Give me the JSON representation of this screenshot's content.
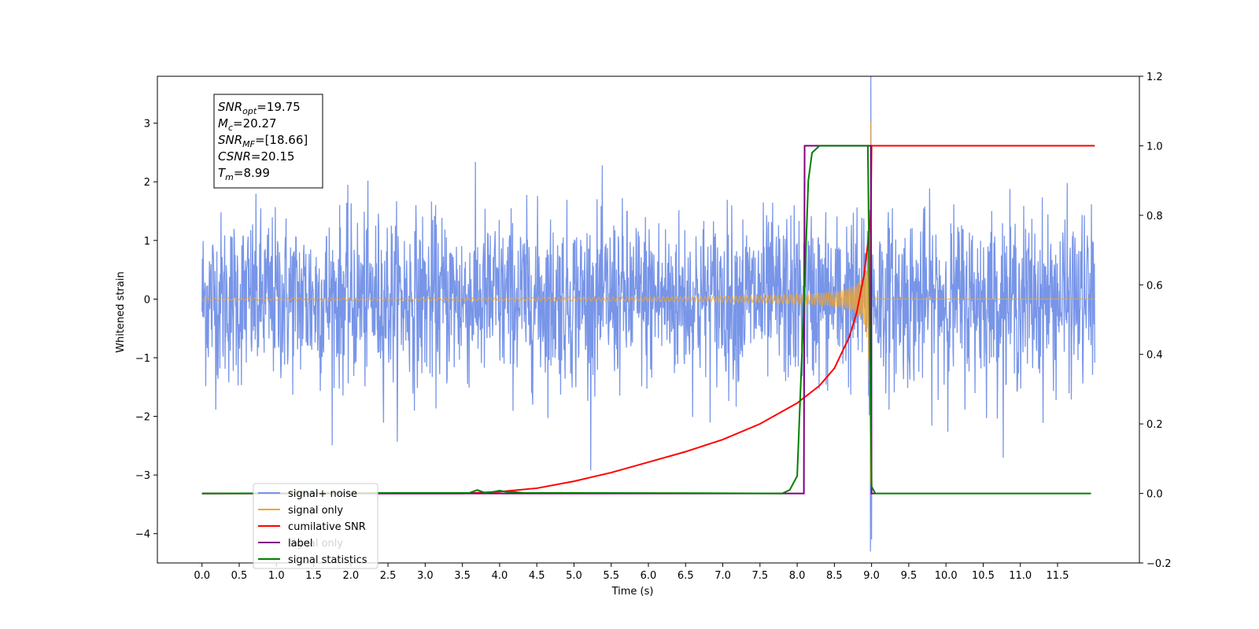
{
  "chart_data": {
    "type": "line",
    "xlabel": "Time (s)",
    "ylabel": "Whitened strain",
    "xlim": [
      -0.6,
      12.6
    ],
    "ylim_left": [
      -4.5,
      3.8
    ],
    "ylim_right": [
      -0.2,
      1.2
    ],
    "x_ticks": [
      0.0,
      0.5,
      1.0,
      1.5,
      2.0,
      2.5,
      3.0,
      3.5,
      4.0,
      4.5,
      5.0,
      5.5,
      6.0,
      6.5,
      7.0,
      7.5,
      8.0,
      8.5,
      9.0,
      9.5,
      10.0,
      10.5,
      11.0,
      11.5
    ],
    "x_tick_labels": [
      "0.0",
      "0.5",
      "1.0",
      "1.5",
      "2.0",
      "2.5",
      "3.0",
      "3.5",
      "4.0",
      "4.5",
      "5.0",
      "5.5",
      "6.0",
      "6.5",
      "7.0",
      "7.5",
      "8.0",
      "8.5",
      "9.0",
      "9.5",
      "10.0",
      "10.5",
      "11.0",
      "11.5"
    ],
    "y_left_ticks": [
      -4,
      -3,
      -2,
      -1,
      0,
      1,
      2,
      3
    ],
    "y_left_tick_labels": [
      "−4",
      "−3",
      "−2",
      "−1",
      "0",
      "1",
      "2",
      "3"
    ],
    "y_right_ticks": [
      -0.2,
      0.0,
      0.2,
      0.4,
      0.6,
      0.8,
      1.0,
      1.2
    ],
    "y_right_tick_labels": [
      "−0.2",
      "0.0",
      "0.2",
      "0.4",
      "0.6",
      "0.8",
      "1.0",
      "1.2"
    ],
    "grid": false,
    "legend_position": "bottom-left",
    "series": [
      {
        "name": "signal+ noise",
        "axis": "left",
        "color": "#7895e8",
        "description_values": {
          "x_start": 0.0,
          "x_end": 12.0,
          "typical_abs_max": 2.0,
          "peak_max": 3.45,
          "peak_min": -4.1,
          "peak_time": 9.0
        }
      },
      {
        "name": "signal only",
        "axis": "left",
        "color": "#f5a623",
        "chirp": {
          "t_start": 0.0,
          "t_merger": 8.99,
          "t_end": 12.0,
          "amp_start": 0.02,
          "amp_peak": 3.25
        }
      },
      {
        "name": "cumilative SNR",
        "axis": "right",
        "color": "#ff0000",
        "x": [
          0.0,
          3.5,
          4.0,
          4.5,
          5.0,
          5.5,
          6.0,
          6.5,
          7.0,
          7.5,
          8.0,
          8.3,
          8.5,
          8.7,
          8.8,
          8.9,
          8.95,
          8.99,
          9.0,
          12.0
        ],
        "y": [
          0.0,
          0.0,
          0.005,
          0.015,
          0.035,
          0.06,
          0.09,
          0.12,
          0.155,
          0.2,
          0.26,
          0.31,
          0.36,
          0.45,
          0.52,
          0.63,
          0.72,
          0.8,
          1.0,
          1.0
        ]
      },
      {
        "name": "label",
        "axis": "right",
        "color": "#800080",
        "x": [
          0.0,
          8.09,
          8.1,
          8.99,
          9.0,
          9.05
        ],
        "y": [
          0.0,
          0.0,
          1.0,
          1.0,
          0.0,
          0.0
        ]
      },
      {
        "name": "signal statistics",
        "axis": "right",
        "color": "#008000",
        "x": [
          0.0,
          3.6,
          3.7,
          3.8,
          3.9,
          4.0,
          4.1,
          4.2,
          4.3,
          7.8,
          7.9,
          8.0,
          8.1,
          8.15,
          8.2,
          8.3,
          8.95,
          9.0,
          9.05,
          11.0,
          11.95
        ],
        "y": [
          0.0,
          0.002,
          0.01,
          0.002,
          0.004,
          0.008,
          0.004,
          0.004,
          0.002,
          0.0,
          0.01,
          0.05,
          0.6,
          0.9,
          0.98,
          1.0,
          1.0,
          0.02,
          0.0,
          0.0,
          0.0
        ]
      }
    ],
    "legend_entries": [
      "signal+ noise",
      "signal only",
      "cumilative SNR",
      "label",
      "signal statistics"
    ],
    "legend_hidden_entry": "signal only",
    "info_box": {
      "lines": [
        {
          "main": "SNR",
          "sub": "opt",
          "rest": "=19.75"
        },
        {
          "main": "M",
          "sub": "c",
          "rest": "=20.27"
        },
        {
          "main": "SNR",
          "sub": "MF",
          "rest": "=[18.66]"
        },
        {
          "main": "CSNR",
          "sub": "",
          "rest": "=20.15"
        },
        {
          "main": "T",
          "sub": "m",
          "rest": "=8.99"
        }
      ]
    }
  }
}
